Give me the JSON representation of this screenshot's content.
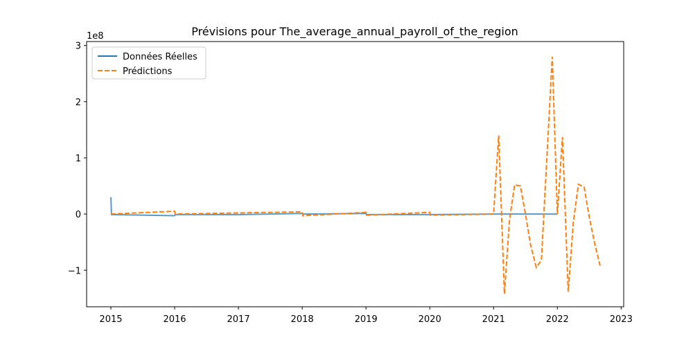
{
  "chart_data": {
    "type": "line",
    "title": "Prévisions pour The_average_annual_payroll_of_the_region",
    "y_scale_label": "1e8",
    "legend": "upper left",
    "xlim": [
      2014.62,
      2023.04
    ],
    "xticks": [
      2015,
      2016,
      2017,
      2018,
      2019,
      2020,
      2021,
      2022,
      2023
    ],
    "ylim": [
      -1.65,
      3.07
    ],
    "yticks": [
      {
        "value": -1,
        "label": "−1"
      },
      0,
      1,
      2,
      3
    ],
    "series": [
      {
        "name": "Données Réelles",
        "color": "#1f77b4",
        "dash": false,
        "x": [
          2015,
          2015.01,
          2016,
          2016.01,
          2017,
          2018,
          2018.01,
          2019,
          2019.01,
          2020,
          2021,
          2022
        ],
        "values": [
          0.3,
          -0.01,
          -0.03,
          -0.01,
          -0.01,
          0.01,
          0.0,
          0.01,
          -0.01,
          -0.01,
          0.0,
          0.0
        ]
      },
      {
        "name": "Prédictions",
        "color": "#ff7f0e",
        "dash": true,
        "x": [
          2015,
          2016,
          2016.01,
          2017,
          2018,
          2018.01,
          2019,
          2019.01,
          2020,
          2020.01,
          2021,
          2021.08,
          2021.17,
          2021.25,
          2021.33,
          2021.42,
          2021.5,
          2021.58,
          2021.67,
          2021.75,
          2021.92,
          2022.0,
          2022.08,
          2022.17,
          2022.25,
          2022.33,
          2022.42,
          2022.5,
          2022.58,
          2022.67
        ],
        "values": [
          0.0,
          0.05,
          0.0,
          0.02,
          0.04,
          -0.03,
          0.03,
          -0.02,
          0.03,
          -0.02,
          0.0,
          1.4,
          -1.42,
          -0.1,
          0.52,
          0.5,
          0.0,
          -0.55,
          -0.95,
          -0.82,
          2.8,
          0.0,
          1.37,
          -1.38,
          -0.15,
          0.53,
          0.48,
          -0.05,
          -0.5,
          -0.92
        ]
      }
    ]
  }
}
